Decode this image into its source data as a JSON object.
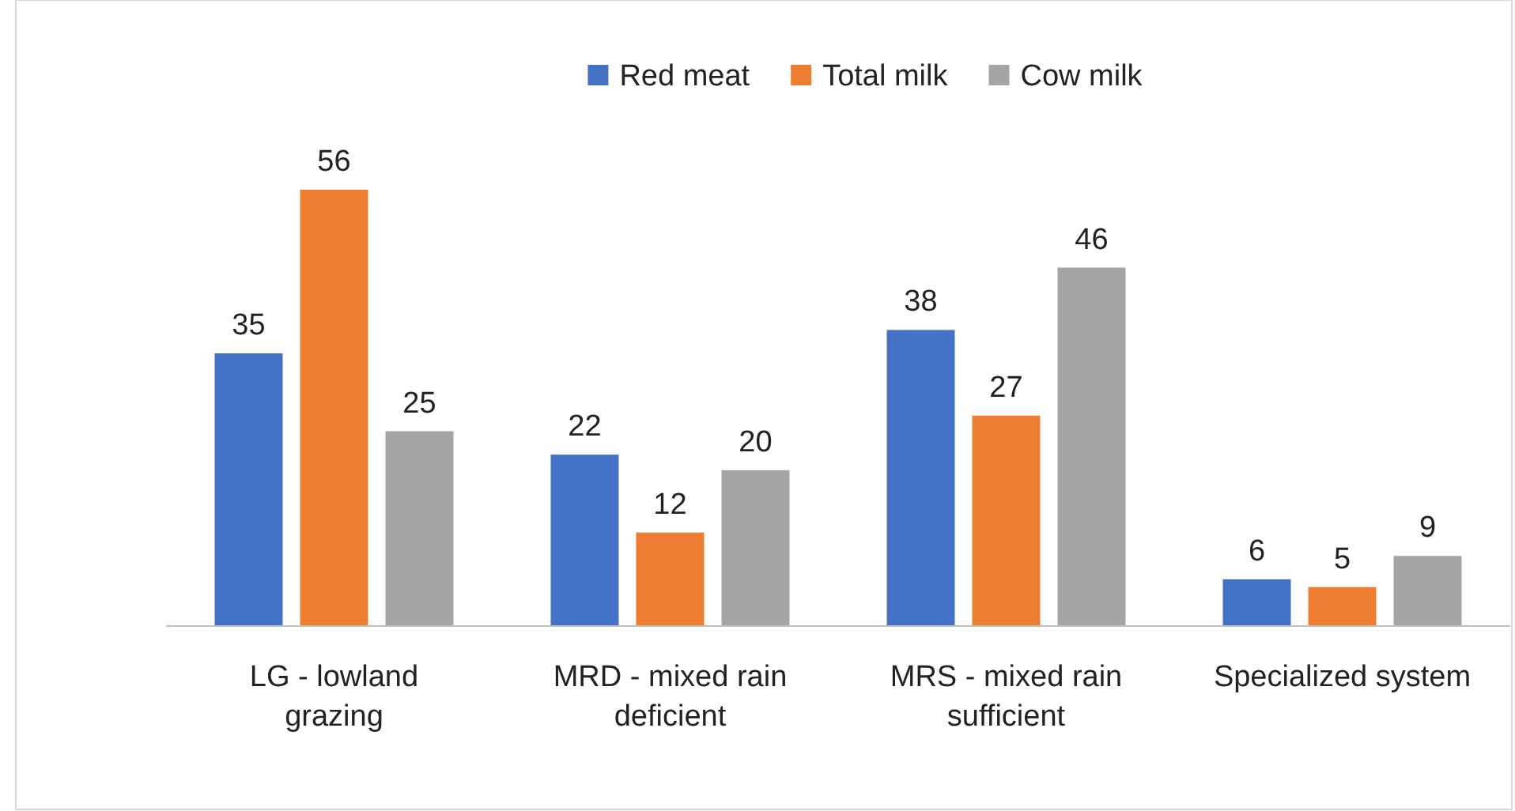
{
  "chart_data": {
    "type": "bar",
    "categories": [
      "LG - lowland grazing",
      "MRD - mixed rain deficient",
      "MRS - mixed rain sufficient",
      "Specialized system"
    ],
    "series": [
      {
        "name": "Red meat",
        "color": "#4472c4",
        "values": [
          35,
          22,
          38,
          6
        ]
      },
      {
        "name": "Total milk",
        "color": "#ed7d31",
        "values": [
          56,
          12,
          27,
          5
        ]
      },
      {
        "name": "Cow milk",
        "color": "#a5a5a5",
        "values": [
          25,
          20,
          46,
          9
        ]
      }
    ],
    "data_labels": true,
    "legend": "top"
  }
}
